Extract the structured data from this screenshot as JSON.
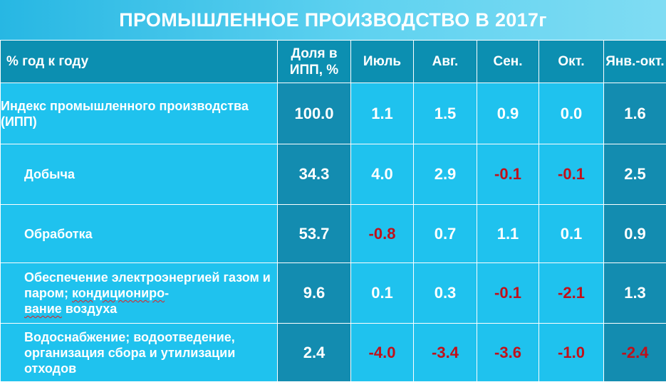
{
  "title": "ПРОМЫШЛЕННОЕ ПРОИЗВОДСТВО В 2017г",
  "table": {
    "headers": [
      "% год к году",
      "Доля в ИПП, %",
      "Июль",
      "Авг.",
      "Сен.",
      "Окт.",
      "Янв.-окт."
    ],
    "rows": [
      {
        "label": "Индекс промышленного производства (ИПП)",
        "share": "100.0",
        "values": [
          "1.1",
          "1.5",
          "0.9",
          "0.0"
        ],
        "total": "1.6"
      },
      {
        "label": "Добыча",
        "share": "34.3",
        "values": [
          "4.0",
          "2.9",
          "-0.1",
          "-0.1"
        ],
        "total": "2.5"
      },
      {
        "label": "Обработка",
        "share": "53.7",
        "values": [
          "-0.8",
          "0.7",
          "1.1",
          "0.1"
        ],
        "total": "0.9"
      },
      {
        "label_part1": "Обеспечение электроэнергией газом и паром; ",
        "label_part2": "кондициониро",
        "label_part3": "-",
        "label_part4": "вание",
        "label_part5": " воздуха",
        "share": "9.6",
        "values": [
          "0.1",
          "0.3",
          "-0.1",
          "-2.1"
        ],
        "total": "1.3"
      },
      {
        "label": "Водоснабжение; водоотведение, организация сбора и утилизации отходов",
        "share": "2.4",
        "values": [
          "-4.0",
          "-3.4",
          "-3.6",
          "-1.0"
        ],
        "total": "-2.4"
      }
    ]
  },
  "colors": {
    "negative": "#c0101a",
    "header_bg": "#0c8fb1",
    "cell_bg": "#1fc2ee",
    "dark_column_bg": "#138cb0"
  }
}
